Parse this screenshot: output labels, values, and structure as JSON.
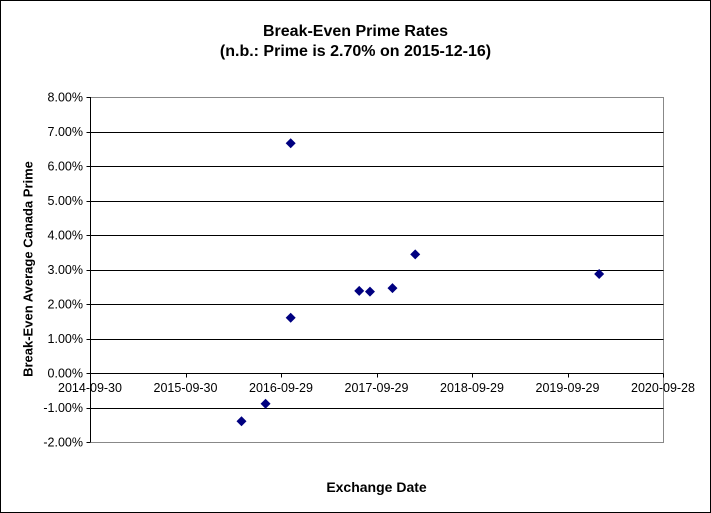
{
  "chart_data": {
    "type": "scatter",
    "title": "Break-Even Prime Rates",
    "subtitle": "(n.b.: Prime is 2.70% on 2015-12-16)",
    "xlabel": "Exchange Date",
    "ylabel": "Break-Even Average Canada Prime",
    "x_tick_labels": [
      "2014-09-30",
      "2015-09-30",
      "2016-09-29",
      "2017-09-29",
      "2018-09-29",
      "2019-09-29",
      "2020-09-28"
    ],
    "y_tick_values": [
      8,
      7,
      6,
      5,
      4,
      3,
      2,
      1,
      0,
      -1,
      -2
    ],
    "y_tick_labels": [
      "8.00%",
      "7.00%",
      "6.00%",
      "5.00%",
      "4.00%",
      "3.00%",
      "2.00%",
      "1.00%",
      "0.00%",
      "-1.00%",
      "-2.00%"
    ],
    "ylim": [
      -2,
      8
    ],
    "x_range": [
      "2014-09-30",
      "2020-09-28"
    ],
    "grid": "horizontal",
    "legend": "none",
    "marker": "diamond",
    "points": [
      {
        "exchange_date": "2016-05-01",
        "value": -1.4
      },
      {
        "exchange_date": "2016-08-01",
        "value": -0.89
      },
      {
        "exchange_date": "2016-11-05",
        "value": 6.66
      },
      {
        "exchange_date": "2016-11-05",
        "value": 1.6
      },
      {
        "exchange_date": "2017-07-25",
        "value": 2.38
      },
      {
        "exchange_date": "2017-09-04",
        "value": 2.36
      },
      {
        "exchange_date": "2017-11-29",
        "value": 2.46
      },
      {
        "exchange_date": "2018-02-24",
        "value": 3.44
      },
      {
        "exchange_date": "2020-01-28",
        "value": 2.87
      }
    ],
    "colors": {
      "marker": "#000080",
      "gridline": "#000000",
      "axis_line": "#000000",
      "plot_border": "#888888",
      "text": "#000000",
      "background": "#ffffff"
    }
  }
}
